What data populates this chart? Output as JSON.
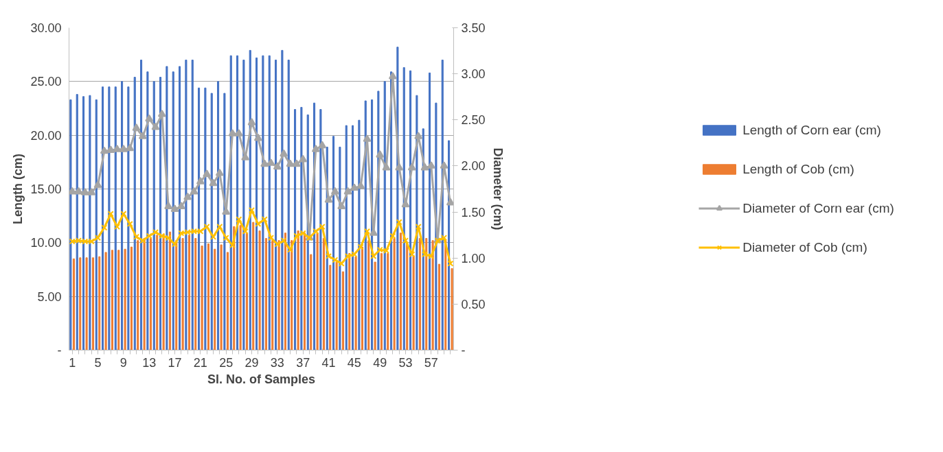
{
  "chart_data": {
    "type": "bar",
    "xlabel": "Sl. No. of Samples",
    "ylabel": "Length (cm)",
    "y2label": "Diameter (cm)",
    "categories": [
      "1",
      null,
      null,
      null,
      "5",
      null,
      null,
      null,
      "9",
      null,
      null,
      null,
      "13",
      null,
      null,
      null,
      "17",
      null,
      null,
      null,
      "21",
      null,
      null,
      null,
      "25",
      null,
      null,
      null,
      "29",
      null,
      null,
      null,
      "33",
      null,
      null,
      null,
      "37",
      null,
      null,
      null,
      "41",
      null,
      null,
      null,
      "45",
      null,
      null,
      null,
      "49",
      null,
      null,
      null,
      "53",
      null,
      null,
      null,
      "57",
      null,
      null,
      null
    ],
    "series": [
      {
        "name": "Length of Corn ear (cm)",
        "color": "#4472c4",
        "values": [
          23.3,
          23.8,
          23.6,
          23.7,
          23.3,
          24.5,
          24.5,
          24.5,
          25.0,
          24.5,
          25.4,
          27.0,
          25.9,
          25.0,
          25.4,
          26.4,
          25.9,
          26.4,
          27.0,
          27.0,
          24.4,
          24.4,
          23.9,
          25.0,
          23.9,
          27.4,
          27.4,
          27.0,
          27.9,
          27.2,
          27.4,
          27.4,
          27.0,
          27.9,
          27.0,
          22.4,
          22.6,
          21.9,
          23.0,
          22.4,
          18.9,
          19.9,
          18.9,
          20.9,
          20.9,
          21.4,
          23.2,
          23.3,
          24.1,
          25.0,
          25.9,
          28.2,
          26.3,
          26.0,
          23.7,
          20.6,
          25.8,
          23.0,
          27.0,
          19.5
        ]
      },
      {
        "name": "Length of Cob (cm)",
        "color": "#ed7d31",
        "values": [
          8.5,
          8.6,
          8.6,
          8.6,
          8.7,
          9.1,
          9.3,
          9.3,
          9.4,
          9.6,
          10.2,
          10.4,
          10.4,
          10.7,
          10.8,
          11.0,
          10.2,
          10.4,
          10.7,
          10.4,
          9.7,
          9.9,
          9.4,
          9.8,
          9.1,
          11.5,
          11.6,
          10.9,
          11.9,
          11.1,
          10.4,
          10.2,
          10.2,
          10.9,
          10.2,
          11.1,
          10.9,
          8.9,
          10.9,
          10.4,
          7.9,
          8.2,
          7.3,
          9.0,
          8.7,
          9.6,
          10.2,
          8.2,
          9.0,
          9.0,
          10.4,
          10.9,
          10.0,
          8.8,
          10.4,
          10.4,
          10.2,
          8.0,
          10.2,
          7.6
        ]
      },
      {
        "name": "Diameter of Corn ear (cm)",
        "type": "line",
        "axis": "y2",
        "color": "#a5a5a5",
        "marker": "triangle",
        "values": [
          1.72,
          1.72,
          1.71,
          1.71,
          1.79,
          2.16,
          2.17,
          2.18,
          2.18,
          2.19,
          2.41,
          2.32,
          2.51,
          2.42,
          2.56,
          1.56,
          1.53,
          1.56,
          1.66,
          1.72,
          1.83,
          1.91,
          1.81,
          1.92,
          1.5,
          2.35,
          2.35,
          2.09,
          2.47,
          2.3,
          2.02,
          2.03,
          1.99,
          2.13,
          2.02,
          2.02,
          2.07,
          1.22,
          2.18,
          2.22,
          1.63,
          1.72,
          1.56,
          1.72,
          1.76,
          1.78,
          2.29,
          1.27,
          2.12,
          1.98,
          2.97,
          1.98,
          1.58,
          1.98,
          2.32,
          1.98,
          2.0,
          1.19,
          2.0,
          1.6
        ]
      },
      {
        "name": "Diameter of Cob (cm)",
        "type": "line",
        "axis": "y2",
        "color": "#ffc000",
        "marker": "cross",
        "values": [
          1.18,
          1.19,
          1.18,
          1.18,
          1.22,
          1.33,
          1.48,
          1.34,
          1.48,
          1.37,
          1.23,
          1.19,
          1.24,
          1.28,
          1.24,
          1.22,
          1.15,
          1.27,
          1.28,
          1.29,
          1.29,
          1.34,
          1.23,
          1.34,
          1.22,
          1.14,
          1.42,
          1.29,
          1.52,
          1.37,
          1.42,
          1.22,
          1.15,
          1.19,
          1.09,
          1.24,
          1.27,
          1.22,
          1.29,
          1.34,
          1.02,
          0.98,
          0.94,
          1.02,
          1.04,
          1.12,
          1.29,
          1.02,
          1.09,
          1.08,
          1.24,
          1.39,
          1.19,
          1.04,
          1.34,
          1.04,
          1.02,
          1.19,
          1.22,
          0.94
        ]
      }
    ],
    "ylim": [
      0,
      30
    ],
    "yticks": [
      {
        "value": 0,
        "label": "-"
      },
      {
        "value": 5,
        "label": "5.00"
      },
      {
        "value": 10,
        "label": "10.00"
      },
      {
        "value": 15,
        "label": "15.00"
      },
      {
        "value": 20,
        "label": "20.00"
      },
      {
        "value": 25,
        "label": "25.00"
      },
      {
        "value": 30,
        "label": "30.00"
      }
    ],
    "y2lim": [
      0,
      3.5
    ],
    "y2ticks": [
      {
        "value": 0,
        "label": "-"
      },
      {
        "value": 0.5,
        "label": "0.50"
      },
      {
        "value": 1,
        "label": "1.00"
      },
      {
        "value": 1.5,
        "label": "1.50"
      },
      {
        "value": 2,
        "label": "2.00"
      },
      {
        "value": 2.5,
        "label": "2.50"
      },
      {
        "value": 3,
        "label": "3.00"
      },
      {
        "value": 3.5,
        "label": "3.50"
      }
    ],
    "grid": "y",
    "legend": "right"
  }
}
